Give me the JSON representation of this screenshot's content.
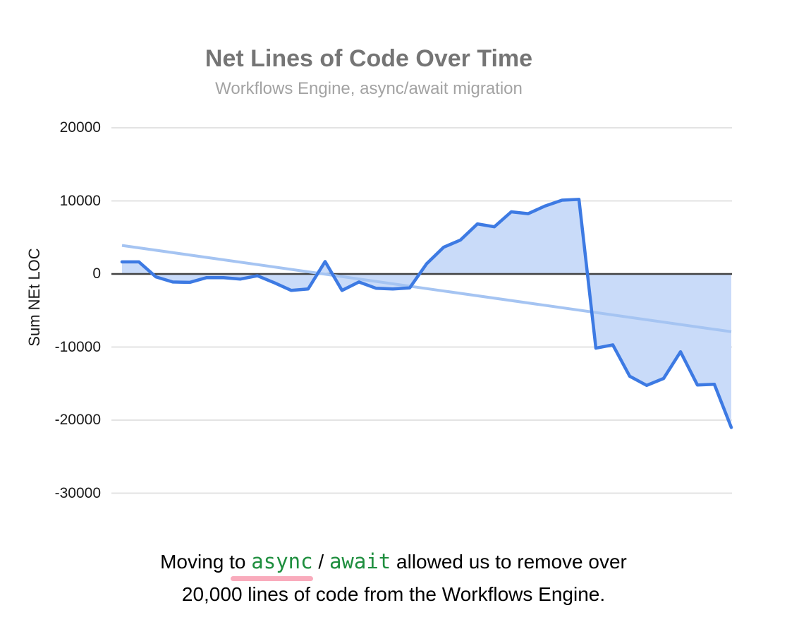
{
  "chart": {
    "title": "Net Lines of Code Over Time",
    "subtitle": "Workflows Engine, async/await migration",
    "y_axis_title": "Sum NEt LOC",
    "y_tick_labels": [
      "20000",
      "10000",
      "0",
      "-10000",
      "-20000",
      "-30000"
    ]
  },
  "chart_data": {
    "type": "area",
    "title": "Net Lines of Code Over Time",
    "subtitle": "Workflows Engine, async/await migration",
    "xlabel": "",
    "ylabel": "Sum NEt LOC",
    "ylim": [
      -30000,
      20000
    ],
    "y_ticks": [
      20000,
      10000,
      0,
      -10000,
      -20000,
      -30000
    ],
    "grid": true,
    "legend": "none",
    "x_axis_labels_visible": false,
    "series": [
      {
        "name": "Sum NEt LOC",
        "type": "area",
        "values": [
          1650,
          1650,
          -400,
          -1100,
          -1150,
          -500,
          -500,
          -700,
          -250,
          -1200,
          -2250,
          -2050,
          1700,
          -2250,
          -1100,
          -1950,
          -2050,
          -1900,
          1400,
          3650,
          4650,
          6850,
          6450,
          8500,
          8250,
          9300,
          10100,
          10200,
          -10150,
          -9700,
          -14000,
          -15250,
          -14300,
          -10650,
          -15200,
          -15100,
          -21000
        ]
      },
      {
        "name": "Linear trendline",
        "type": "line",
        "values_at_ends": [
          3900,
          -7900
        ]
      }
    ]
  },
  "caption": {
    "full_text": "Moving to async / await allowed us to remove over 20,000 lines of code from the Workflows Engine.",
    "line1_segments": [
      {
        "text": "Moving ",
        "code": false,
        "underline": false
      },
      {
        "text": "to ",
        "code": false,
        "underline": true
      },
      {
        "text": "async",
        "code": true,
        "underline": true
      },
      {
        "text": " / ",
        "code": false,
        "underline": false
      },
      {
        "text": "await",
        "code": true,
        "underline": false
      },
      {
        "text": " allowed us to remove over",
        "code": false,
        "underline": false
      }
    ],
    "line2": "20,000 lines of code from the Workflows Engine."
  },
  "colors": {
    "series_line": "#3d7ae3",
    "series_fill": "#c9dbf9",
    "trendline": "#a5c4f2",
    "gridline": "#e3e3e3",
    "zero_axis": "#424242",
    "title_text": "#757575",
    "subtitle_text": "#a3a3a3",
    "axis_text": "#1a1a1a",
    "caption_text": "#000000",
    "code_green": "#1e8e3e",
    "underline_pink": "#f9abbc"
  }
}
